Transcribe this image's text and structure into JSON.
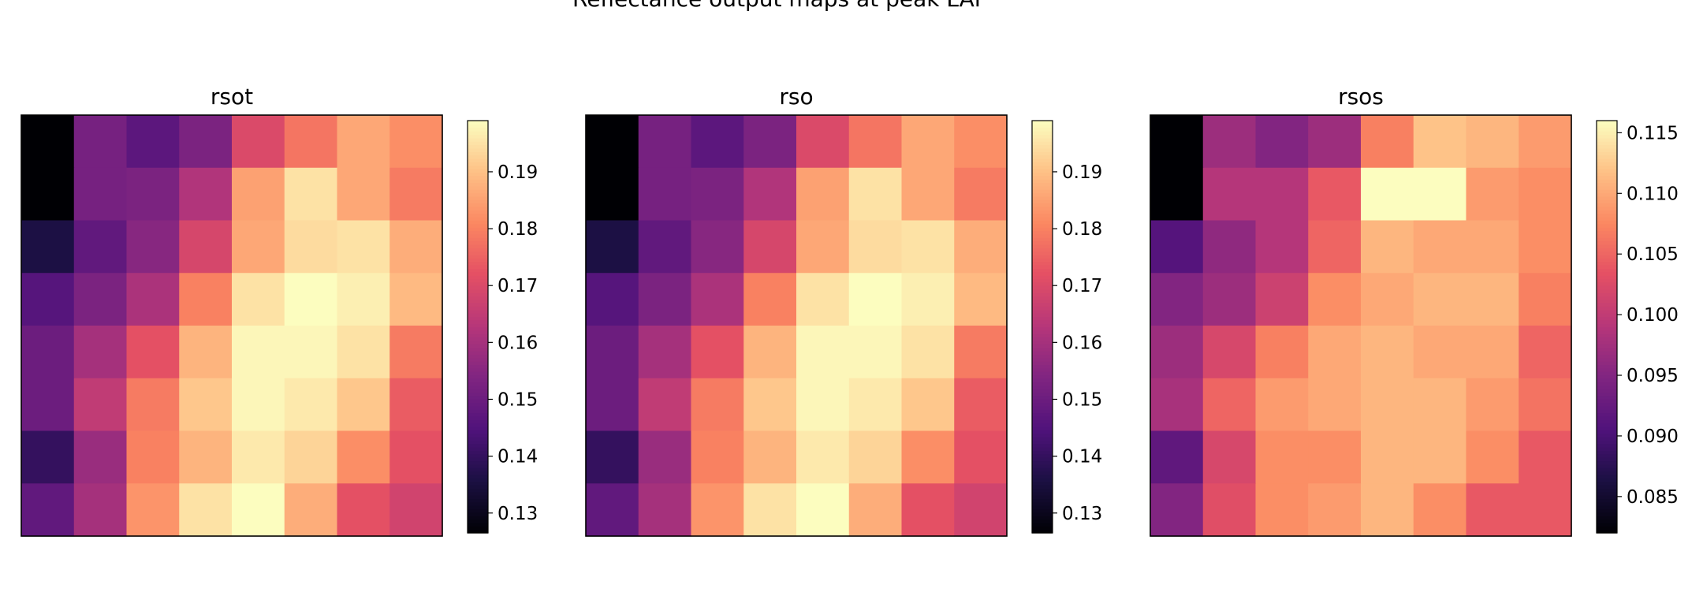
{
  "figure": {
    "suptitle": "Reflectance output maps at peak LAI"
  },
  "chart_data": [
    {
      "type": "heatmap",
      "title": "rsot",
      "colormap": "magma",
      "grid": false,
      "vmin": 0.1265,
      "vmax": 0.199,
      "colorbar_ticks": [
        0.13,
        0.14,
        0.15,
        0.16,
        0.17,
        0.18,
        0.19
      ],
      "colorbar_tick_labels": [
        "0.13",
        "0.14",
        "0.15",
        "0.16",
        "0.17",
        "0.18",
        "0.19"
      ],
      "values": [
        [
          0.1265,
          0.152,
          0.147,
          0.153,
          0.17,
          0.178,
          0.186,
          0.182
        ],
        [
          0.1265,
          0.152,
          0.153,
          0.162,
          0.185,
          0.195,
          0.186,
          0.179
        ],
        [
          0.136,
          0.148,
          0.155,
          0.169,
          0.186,
          0.194,
          0.195,
          0.187
        ],
        [
          0.146,
          0.153,
          0.161,
          0.18,
          0.195,
          0.199,
          0.197,
          0.189
        ],
        [
          0.15,
          0.16,
          0.172,
          0.188,
          0.198,
          0.198,
          0.195,
          0.179
        ],
        [
          0.15,
          0.165,
          0.179,
          0.191,
          0.198,
          0.196,
          0.191,
          0.174
        ],
        [
          0.14,
          0.158,
          0.18,
          0.188,
          0.196,
          0.193,
          0.182,
          0.172
        ],
        [
          0.148,
          0.16,
          0.183,
          0.195,
          0.199,
          0.187,
          0.172,
          0.168
        ]
      ]
    },
    {
      "type": "heatmap",
      "title": "rso",
      "colormap": "magma",
      "grid": false,
      "vmin": 0.1265,
      "vmax": 0.199,
      "colorbar_ticks": [
        0.13,
        0.14,
        0.15,
        0.16,
        0.17,
        0.18,
        0.19
      ],
      "colorbar_tick_labels": [
        "0.13",
        "0.14",
        "0.15",
        "0.16",
        "0.17",
        "0.18",
        "0.19"
      ],
      "values": [
        [
          0.1265,
          0.152,
          0.147,
          0.153,
          0.17,
          0.178,
          0.186,
          0.182
        ],
        [
          0.1265,
          0.152,
          0.153,
          0.162,
          0.185,
          0.195,
          0.186,
          0.179
        ],
        [
          0.136,
          0.148,
          0.155,
          0.169,
          0.186,
          0.194,
          0.195,
          0.187
        ],
        [
          0.146,
          0.153,
          0.161,
          0.18,
          0.195,
          0.199,
          0.197,
          0.189
        ],
        [
          0.15,
          0.16,
          0.172,
          0.188,
          0.198,
          0.198,
          0.195,
          0.179
        ],
        [
          0.15,
          0.165,
          0.179,
          0.191,
          0.198,
          0.196,
          0.191,
          0.174
        ],
        [
          0.14,
          0.158,
          0.18,
          0.188,
          0.196,
          0.193,
          0.182,
          0.172
        ],
        [
          0.148,
          0.16,
          0.183,
          0.195,
          0.199,
          0.187,
          0.172,
          0.168
        ]
      ]
    },
    {
      "type": "heatmap",
      "title": "rsos",
      "colormap": "magma",
      "grid": false,
      "vmin": 0.082,
      "vmax": 0.116,
      "colorbar_ticks": [
        0.085,
        0.09,
        0.095,
        0.1,
        0.105,
        0.11,
        0.115
      ],
      "colorbar_tick_labels": [
        "0.085",
        "0.090",
        "0.095",
        "0.100",
        "0.105",
        "0.110",
        "0.115"
      ],
      "values": [
        [
          0.082,
          0.097,
          0.095,
          0.097,
          0.107,
          0.112,
          0.111,
          0.109
        ],
        [
          0.082,
          0.099,
          0.099,
          0.104,
          0.116,
          0.116,
          0.109,
          0.108
        ],
        [
          0.091,
          0.096,
          0.099,
          0.105,
          0.111,
          0.11,
          0.11,
          0.108
        ],
        [
          0.095,
          0.097,
          0.101,
          0.108,
          0.11,
          0.111,
          0.111,
          0.107
        ],
        [
          0.097,
          0.102,
          0.107,
          0.11,
          0.111,
          0.11,
          0.11,
          0.105
        ],
        [
          0.098,
          0.105,
          0.109,
          0.11,
          0.111,
          0.111,
          0.109,
          0.106
        ],
        [
          0.092,
          0.102,
          0.108,
          0.108,
          0.111,
          0.111,
          0.108,
          0.104
        ],
        [
          0.095,
          0.103,
          0.108,
          0.109,
          0.111,
          0.108,
          0.104,
          0.104
        ]
      ]
    }
  ]
}
